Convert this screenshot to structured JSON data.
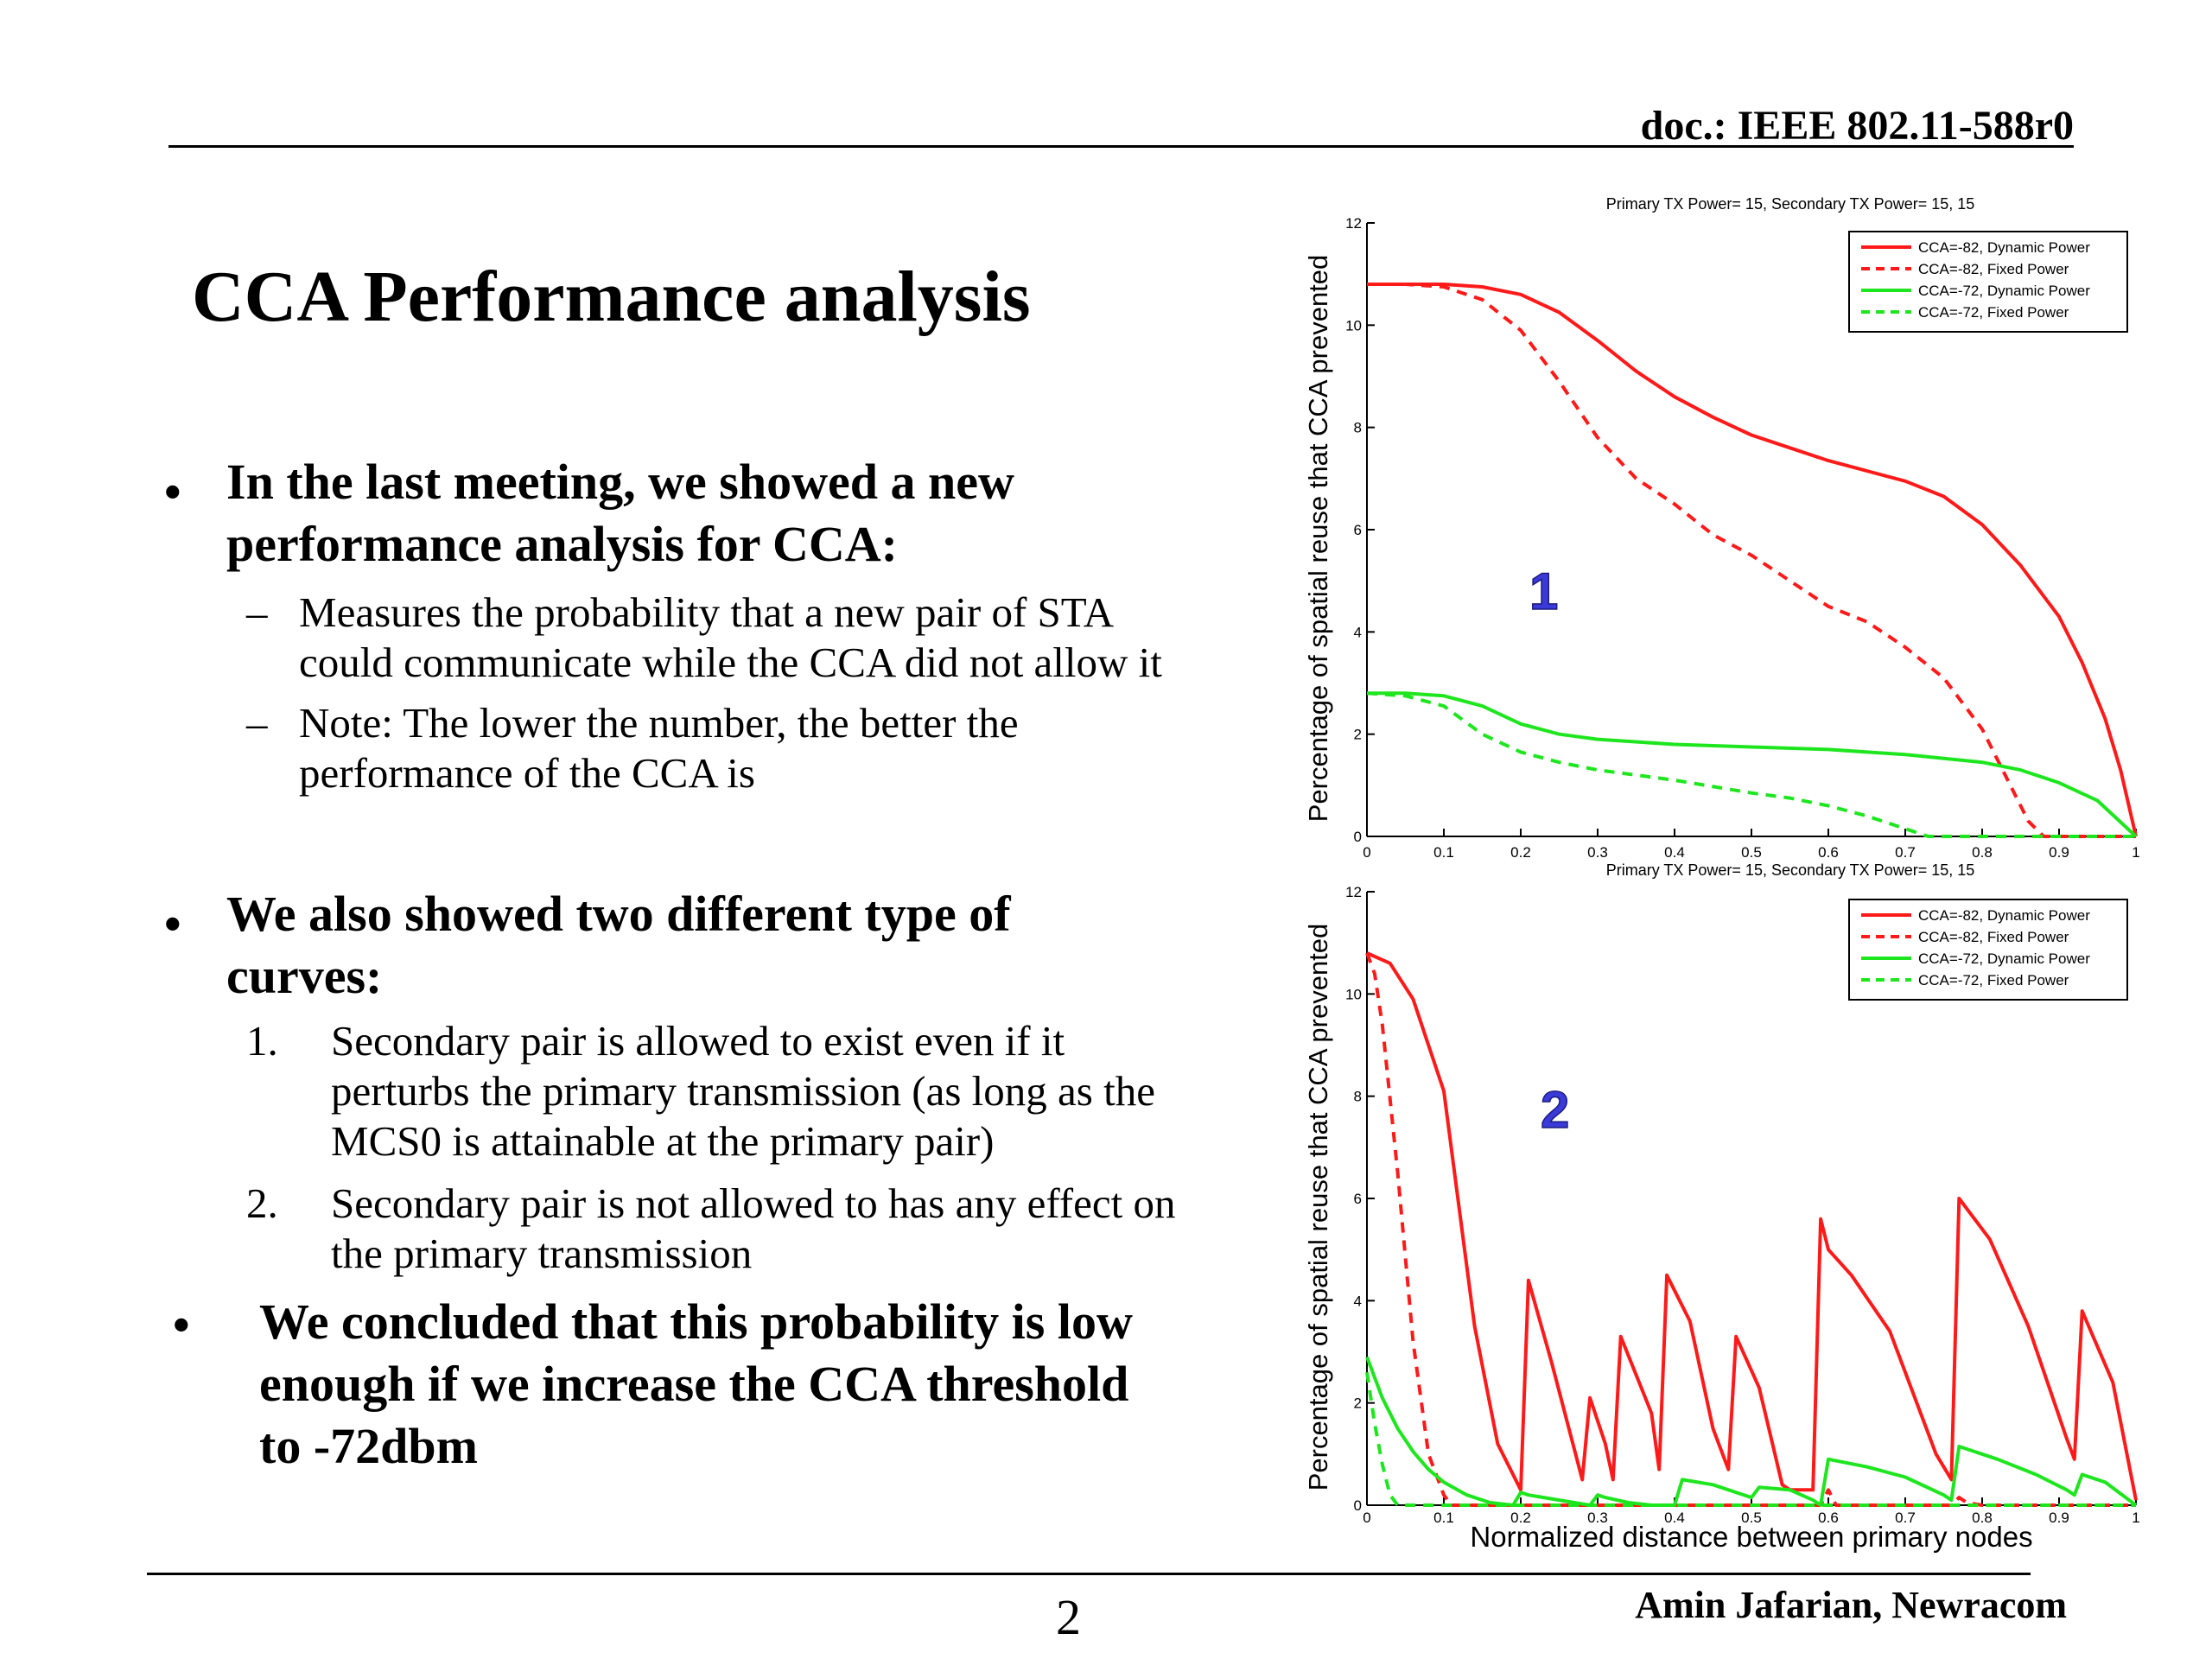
{
  "header": {
    "doc_id": "doc.: IEEE 802.11-588r0"
  },
  "slide": {
    "title": "CCA Performance analysis",
    "bullets": [
      {
        "marker": "•",
        "lines": [
          "In the last meeting, we showed a new",
          "performance analysis for CCA:"
        ],
        "subitems": [
          {
            "marker": "–",
            "lines": [
              "Measures the probability that a new pair of STA",
              "could communicate while the CCA did not allow it"
            ]
          },
          {
            "marker": "–",
            "lines": [
              "Note: The lower the number, the better the",
              "performance of the CCA is"
            ]
          }
        ]
      },
      {
        "marker": "•",
        "lines": [
          "We also showed two different type of",
          "curves:"
        ],
        "subitems": [
          {
            "marker": "1.",
            "lines": [
              "Secondary pair is allowed to exist even if it",
              "perturbs the primary transmission (as long as the",
              "MCS0 is attainable at the primary pair)"
            ]
          },
          {
            "marker": "2.",
            "lines": [
              "Secondary pair is not allowed to has any effect on",
              "the primary transmission"
            ]
          }
        ]
      },
      {
        "marker": "•",
        "lines": [
          "We concluded that this probability is low",
          "enough if we increase the CCA threshold",
          "to -72dbm"
        ],
        "subitems": []
      }
    ]
  },
  "footer": {
    "page_number": "2",
    "author": "Amin Jafarian, Newracom"
  },
  "colors": {
    "red": "#ff1a1a",
    "green": "#1ee61e",
    "annotation": "#3a3ad8"
  },
  "chart_data": [
    {
      "type": "line",
      "title": "Primary TX Power= 15, Secondary TX Power= 15, 15",
      "ylabel": "Percentage of spatial reuse that CCA prevented",
      "xlabel": "",
      "xlim": [
        0,
        1
      ],
      "ylim": [
        0,
        12
      ],
      "xticks": [
        "0",
        "0.1",
        "0.2",
        "0.3",
        "0.4",
        "0.5",
        "0.6",
        "0.7",
        "0.8",
        "0.9",
        "1"
      ],
      "yticks": [
        "0",
        "2",
        "4",
        "6",
        "8",
        "10",
        "12"
      ],
      "legend_position": "top-right",
      "annotation": "1",
      "series": [
        {
          "name": "CCA=-82, Dynamic Power",
          "color": "#ff1a1a",
          "dash": false,
          "x": [
            0,
            0.05,
            0.1,
            0.15,
            0.2,
            0.25,
            0.3,
            0.35,
            0.4,
            0.45,
            0.5,
            0.55,
            0.6,
            0.65,
            0.7,
            0.75,
            0.8,
            0.85,
            0.9,
            0.93,
            0.96,
            0.98,
            1.0
          ],
          "y": [
            10.8,
            10.8,
            10.8,
            10.75,
            10.6,
            10.25,
            9.7,
            9.1,
            8.6,
            8.2,
            7.85,
            7.6,
            7.35,
            7.15,
            6.95,
            6.65,
            6.1,
            5.3,
            4.3,
            3.4,
            2.3,
            1.3,
            0.0
          ]
        },
        {
          "name": "CCA=-82, Fixed Power",
          "color": "#ff1a1a",
          "dash": true,
          "x": [
            0,
            0.05,
            0.1,
            0.15,
            0.2,
            0.25,
            0.3,
            0.35,
            0.4,
            0.45,
            0.5,
            0.55,
            0.6,
            0.65,
            0.7,
            0.75,
            0.8,
            0.84,
            0.86,
            0.88,
            1.0
          ],
          "y": [
            10.8,
            10.8,
            10.75,
            10.5,
            9.9,
            8.9,
            7.8,
            7.0,
            6.5,
            5.9,
            5.5,
            5.0,
            4.5,
            4.2,
            3.7,
            3.1,
            2.1,
            0.9,
            0.3,
            0.0,
            0.0
          ]
        },
        {
          "name": "CCA=-72, Dynamic Power",
          "color": "#1ee61e",
          "dash": false,
          "x": [
            0,
            0.05,
            0.1,
            0.15,
            0.2,
            0.25,
            0.3,
            0.4,
            0.5,
            0.6,
            0.7,
            0.8,
            0.85,
            0.9,
            0.95,
            1.0
          ],
          "y": [
            2.8,
            2.8,
            2.75,
            2.55,
            2.2,
            2.0,
            1.9,
            1.8,
            1.75,
            1.7,
            1.6,
            1.45,
            1.3,
            1.05,
            0.7,
            0.0
          ]
        },
        {
          "name": "CCA=-72, Fixed Power",
          "color": "#1ee61e",
          "dash": true,
          "x": [
            0,
            0.05,
            0.1,
            0.15,
            0.2,
            0.25,
            0.3,
            0.4,
            0.5,
            0.55,
            0.6,
            0.65,
            0.7,
            0.73,
            1.0
          ],
          "y": [
            2.8,
            2.75,
            2.55,
            2.0,
            1.65,
            1.45,
            1.3,
            1.1,
            0.85,
            0.75,
            0.6,
            0.4,
            0.15,
            0.0,
            0.0
          ]
        }
      ]
    },
    {
      "type": "line",
      "title": "Primary TX Power= 15, Secondary TX Power= 15, 15",
      "ylabel": "Percentage of spatial reuse that CCA prevented",
      "xlabel": "Normalized distance between primary nodes",
      "xlim": [
        0,
        1
      ],
      "ylim": [
        0,
        12
      ],
      "xticks": [
        "0",
        "0.1",
        "0.2",
        "0.3",
        "0.4",
        "0.5",
        "0.6",
        "0.7",
        "0.8",
        "0.9",
        "1"
      ],
      "yticks": [
        "0",
        "2",
        "4",
        "6",
        "8",
        "10",
        "12"
      ],
      "legend_position": "top-right",
      "annotation": "2",
      "series": [
        {
          "name": "CCA=-82, Dynamic Power",
          "color": "#ff1a1a",
          "dash": false,
          "x": [
            0,
            0.03,
            0.06,
            0.1,
            0.14,
            0.17,
            0.2,
            0.21,
            0.24,
            0.28,
            0.29,
            0.31,
            0.32,
            0.33,
            0.37,
            0.38,
            0.39,
            0.42,
            0.45,
            0.47,
            0.48,
            0.51,
            0.54,
            0.55,
            0.58,
            0.59,
            0.6,
            0.63,
            0.68,
            0.74,
            0.76,
            0.77,
            0.81,
            0.86,
            0.91,
            0.92,
            0.93,
            0.97,
            1.0
          ],
          "y": [
            10.8,
            10.6,
            9.9,
            8.1,
            3.5,
            1.2,
            0.3,
            4.4,
            2.8,
            0.5,
            2.1,
            1.2,
            0.5,
            3.3,
            1.8,
            0.7,
            4.5,
            3.6,
            1.5,
            0.7,
            3.3,
            2.3,
            0.4,
            0.3,
            0.3,
            5.6,
            5.0,
            4.5,
            3.4,
            1.0,
            0.5,
            6.0,
            5.2,
            3.5,
            1.3,
            0.9,
            3.8,
            2.4,
            0.1
          ]
        },
        {
          "name": "CCA=-82, Fixed Power",
          "color": "#ff1a1a",
          "dash": true,
          "x": [
            0,
            0.01,
            0.02,
            0.04,
            0.06,
            0.08,
            0.1,
            0.11,
            0.2,
            0.5,
            0.59,
            0.6,
            0.61,
            0.76,
            0.77,
            0.78,
            0.8,
            1.0
          ],
          "y": [
            10.8,
            10.4,
            9.4,
            6.5,
            3.2,
            1.0,
            0.2,
            0.0,
            0.0,
            0.0,
            0.0,
            0.3,
            0.0,
            0.0,
            0.15,
            0.05,
            0.0,
            0.0
          ]
        },
        {
          "name": "CCA=-72, Dynamic Power",
          "color": "#1ee61e",
          "dash": false,
          "x": [
            0,
            0.02,
            0.04,
            0.06,
            0.08,
            0.1,
            0.13,
            0.16,
            0.19,
            0.2,
            0.21,
            0.25,
            0.29,
            0.3,
            0.31,
            0.34,
            0.37,
            0.4,
            0.41,
            0.45,
            0.5,
            0.51,
            0.55,
            0.58,
            0.59,
            0.6,
            0.65,
            0.7,
            0.75,
            0.76,
            0.77,
            0.82,
            0.87,
            0.91,
            0.92,
            0.93,
            0.96,
            1.0
          ],
          "y": [
            2.9,
            2.1,
            1.5,
            1.05,
            0.7,
            0.45,
            0.2,
            0.05,
            0.0,
            0.25,
            0.2,
            0.1,
            0.0,
            0.2,
            0.15,
            0.05,
            0.0,
            0.0,
            0.5,
            0.4,
            0.15,
            0.35,
            0.3,
            0.1,
            0.0,
            0.9,
            0.75,
            0.55,
            0.2,
            0.1,
            1.15,
            0.9,
            0.6,
            0.3,
            0.2,
            0.6,
            0.45,
            0.0
          ]
        },
        {
          "name": "CCA=-72, Fixed Power",
          "color": "#1ee61e",
          "dash": true,
          "x": [
            0,
            0.01,
            0.02,
            0.03,
            0.04,
            1.0
          ],
          "y": [
            2.6,
            1.6,
            0.8,
            0.2,
            0.0,
            0.0
          ]
        }
      ]
    }
  ]
}
